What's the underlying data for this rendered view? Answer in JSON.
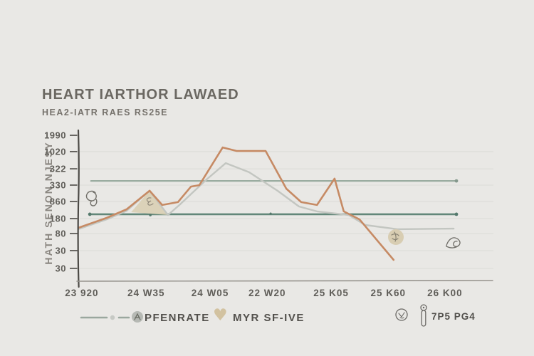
{
  "header": {
    "title": "HEART IARTHOR LAWAED",
    "subtitle": "HEA2-IATR RAES RS25E"
  },
  "chart_data": {
    "type": "line",
    "title": "HEART IARTHOR LAWAED",
    "subtitle": "HEA2-IATR RAES RS25E",
    "grid": true,
    "legend_position": "bottom",
    "y_axis": {
      "label": "HATH SENON NJESY",
      "tick_labels": [
        "1990",
        "1020",
        "322",
        "330",
        "860",
        "180",
        "80",
        "30",
        "30"
      ],
      "tick_pos_pct": [
        2.4,
        13.3,
        24.8,
        35.7,
        46.7,
        58.1,
        68.1,
        79.5,
        91.4
      ]
    },
    "x_axis": {
      "tick_labels": [
        "23 920",
        "24 W35",
        "24 W05",
        "22 W20",
        "25 K05",
        "25 K60",
        "26 K00"
      ],
      "tick_pos_pct": [
        0.9,
        17.7,
        34.4,
        49.3,
        66.0,
        80.9,
        95.7
      ]
    },
    "series": [
      {
        "name": "threshold-line-upper",
        "kind": "polyline",
        "color": "#9aaca0",
        "width": 2.2,
        "points_pct": [
          [
            3.3,
            32.9
          ],
          [
            98.7,
            32.9
          ]
        ],
        "dots_pct": [
          [
            98.7,
            32.9,
            2.4
          ]
        ],
        "dot_color": "#84988c"
      },
      {
        "name": "threshold-line-lower",
        "kind": "polyline",
        "color": "#628779",
        "width": 2.6,
        "points_pct": [
          [
            3.0,
            55.2
          ],
          [
            98.7,
            55.2
          ]
        ],
        "dots_pct": [
          [
            3.0,
            55.2,
            2.4
          ],
          [
            18.8,
            55.7,
            1.8
          ],
          [
            50.2,
            54.8,
            1.6
          ],
          [
            98.7,
            55.2,
            2.4
          ]
        ],
        "dot_color": "#54796c"
      },
      {
        "name": "peak-area-fill",
        "kind": "polygon",
        "color": "#d9cfb4",
        "opacity": 0.9,
        "points_pct": [
          [
            13.8,
            53.8
          ],
          [
            18.6,
            39.5
          ],
          [
            23.4,
            55.7
          ]
        ]
      },
      {
        "name": "secondary-line",
        "kind": "polyline",
        "color": "#c3c6c1",
        "width": 2.4,
        "points_pct": [
          [
            0,
            65.2
          ],
          [
            7.4,
            58.6
          ],
          [
            12.6,
            52.9
          ],
          [
            18.6,
            39.5
          ],
          [
            23.4,
            55.7
          ],
          [
            26.4,
            49.0
          ],
          [
            33.5,
            31.9
          ],
          [
            38.5,
            21.0
          ],
          [
            44.6,
            27.1
          ],
          [
            52.0,
            39.5
          ],
          [
            57.6,
            50.0
          ],
          [
            62.3,
            53.3
          ],
          [
            70.6,
            55.7
          ],
          [
            74.9,
            62.4
          ],
          [
            83.3,
            65.2
          ],
          [
            98.0,
            64.8
          ]
        ]
      },
      {
        "name": "heart-rate-line",
        "kind": "polyline",
        "color": "#c68a64",
        "width": 2.6,
        "points_pct": [
          [
            0,
            64.3
          ],
          [
            7.4,
            57.6
          ],
          [
            12.6,
            51.9
          ],
          [
            18.6,
            39.5
          ],
          [
            21.9,
            49.0
          ],
          [
            26.0,
            47.1
          ],
          [
            29.4,
            36.7
          ],
          [
            31.6,
            35.7
          ],
          [
            37.7,
            10.5
          ],
          [
            41.4,
            12.9
          ],
          [
            48.9,
            12.9
          ],
          [
            54.3,
            38.1
          ],
          [
            58.2,
            47.1
          ],
          [
            62.3,
            49.0
          ],
          [
            66.9,
            31.4
          ],
          [
            69.3,
            53.3
          ],
          [
            73.4,
            58.6
          ],
          [
            82.3,
            85.7
          ]
        ]
      }
    ]
  },
  "legend": {
    "item1_label": "PFENRATE",
    "item2_label": "MYR SF-IVE",
    "item3_label": "7P5 PG4",
    "heart_icon_color": "#d2c2a0",
    "sample_line_color": "#9aa79e"
  },
  "colors": {
    "background": "#e9e8e5",
    "title_text": "#6b6862",
    "tick_text": "#5f5d58",
    "axis_spine": "#4c4a46",
    "x_axis_line": "#97948e",
    "gridline": "#dcdbd6",
    "legend_text": "#52504c",
    "doodle": "#72706a"
  }
}
